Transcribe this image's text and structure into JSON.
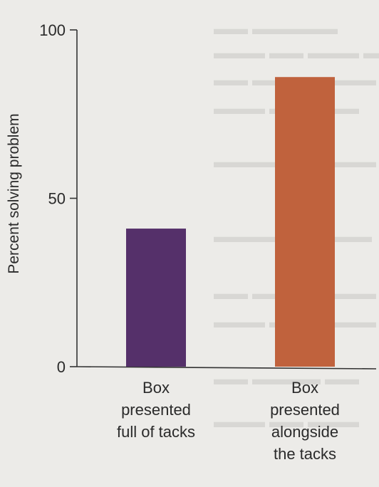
{
  "chart_data": {
    "type": "bar",
    "ylabel": "Percent solving problem",
    "ylim": [
      0,
      100
    ],
    "yticks": [
      0,
      50,
      100
    ],
    "categories": [
      "Box presented full of tacks",
      "Box presented alongside the tacks"
    ],
    "category_lines": [
      [
        "Box",
        "presented",
        "full of tacks"
      ],
      [
        "Box",
        "presented",
        "alongside",
        "the tacks"
      ]
    ],
    "values": [
      41,
      86
    ],
    "colors": [
      "#55306a",
      "#c0623d"
    ],
    "grid": false
  },
  "colors": {
    "background": "#ecebe8",
    "axis": "#333333",
    "text": "#2a2a2a"
  }
}
